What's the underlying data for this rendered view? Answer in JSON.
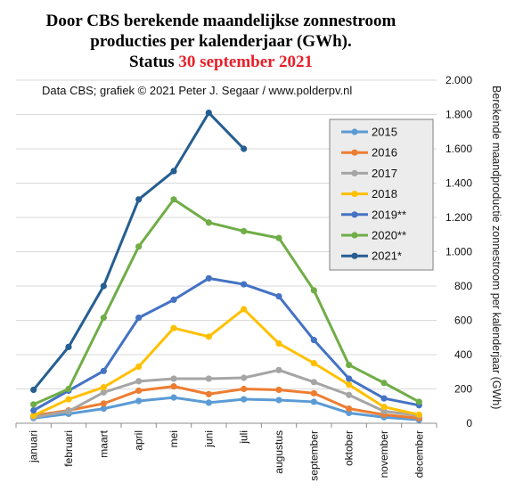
{
  "chart_data": {
    "type": "line",
    "title_lines": [
      "Door CBS berekende maandelijkse  zonnestroom",
      "producties per kalenderjaar (GWh)."
    ],
    "title_status_prefix": "Status ",
    "title_status_highlight": "30 september 2021",
    "subtitle": "Data CBS; grafiek © 2021 Peter J. Segaar / www.polderpv.nl",
    "ylabel": "Berekende maandproductie zonnestroom per kalenderjaar (GWh)",
    "ylim": [
      0,
      2000
    ],
    "yticks": [
      0,
      200,
      400,
      600,
      800,
      1000,
      1200,
      1400,
      1600,
      1800,
      2000
    ],
    "ytick_labels": [
      "0",
      "200",
      "400",
      "600",
      "800",
      "1.000",
      "1.200",
      "1.400",
      "1.600",
      "1.800",
      "2.000"
    ],
    "y_axis_position": "right",
    "grid": true,
    "legend_position": "right",
    "categories": [
      "januari",
      "februari",
      "maart",
      "april",
      "mei",
      "juni",
      "juli",
      "augustus",
      "september",
      "oktober",
      "november",
      "december"
    ],
    "series": [
      {
        "name": "2015",
        "color": "#5b9bd5",
        "values": [
          30,
          55,
          85,
          130,
          150,
          120,
          140,
          135,
          125,
          60,
          35,
          20
        ]
      },
      {
        "name": "2016",
        "color": "#ed7d31",
        "values": [
          45,
          75,
          115,
          190,
          215,
          170,
          200,
          195,
          175,
          85,
          50,
          30
        ]
      },
      {
        "name": "2017",
        "color": "#a5a5a5",
        "values": [
          35,
          70,
          180,
          245,
          260,
          260,
          265,
          310,
          240,
          165,
          70,
          45
        ]
      },
      {
        "name": "2018",
        "color": "#ffc000",
        "values": [
          45,
          140,
          210,
          330,
          555,
          505,
          665,
          465,
          350,
          225,
          95,
          50
        ]
      },
      {
        "name": "2019**",
        "color": "#4472c4",
        "values": [
          75,
          190,
          305,
          615,
          720,
          845,
          810,
          740,
          485,
          260,
          145,
          105
        ]
      },
      {
        "name": "2020**",
        "color": "#70ad47",
        "values": [
          110,
          200,
          615,
          1030,
          1305,
          1170,
          1120,
          1080,
          775,
          340,
          235,
          125
        ]
      },
      {
        "name": "2021*",
        "color": "#255e91",
        "values": [
          195,
          445,
          800,
          1305,
          1470,
          1810,
          1600,
          null,
          null,
          null,
          null,
          null
        ]
      }
    ]
  }
}
